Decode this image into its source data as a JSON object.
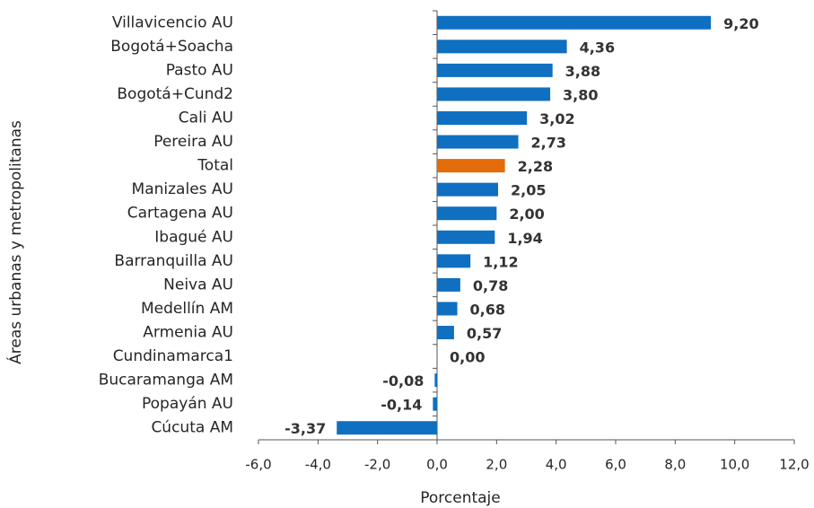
{
  "chart_data": {
    "type": "bar",
    "orientation": "horizontal",
    "categories": [
      "Villavicencio AU",
      "Bogotá+Soacha",
      "Pasto AU",
      "Bogotá+Cund2",
      "Cali AU",
      "Pereira AU",
      "Total",
      "Manizales AU",
      "Cartagena AU",
      "Ibagué AU",
      "Barranquilla AU",
      "Neiva AU",
      "Medellín AM",
      "Armenia AU",
      "Cundinamarca1",
      "Bucaramanga AM",
      "Popayán AU",
      "Cúcuta AM"
    ],
    "values": [
      9.2,
      4.36,
      3.88,
      3.8,
      3.02,
      2.73,
      2.28,
      2.05,
      2.0,
      1.94,
      1.12,
      0.78,
      0.68,
      0.57,
      0.0,
      -0.08,
      -0.14,
      -3.37
    ],
    "value_labels": [
      "9,20",
      "4,36",
      "3,88",
      "3,80",
      "3,02",
      "2,73",
      "2,28",
      "2,05",
      "2,00",
      "1,94",
      "1,12",
      "0,78",
      "0,68",
      "0,57",
      "0,00",
      "-0,08",
      "-0,14",
      "-3,37"
    ],
    "colors": [
      "#0f6fc0",
      "#0f6fc0",
      "#0f6fc0",
      "#0f6fc0",
      "#0f6fc0",
      "#0f6fc0",
      "#e46c0a",
      "#0f6fc0",
      "#0f6fc0",
      "#0f6fc0",
      "#0f6fc0",
      "#0f6fc0",
      "#0f6fc0",
      "#0f6fc0",
      "#0f6fc0",
      "#0f6fc0",
      "#0f6fc0",
      "#0f6fc0"
    ],
    "xlim": [
      -6,
      12
    ],
    "xticks": [
      {
        "value": -6,
        "label": "-6,0"
      },
      {
        "value": -4,
        "label": "-4,0"
      },
      {
        "value": -2,
        "label": "-2,0"
      },
      {
        "value": 0,
        "label": "0,0"
      },
      {
        "value": 2,
        "label": "2,0"
      },
      {
        "value": 4,
        "label": "4,0"
      },
      {
        "value": 6,
        "label": "6,0"
      },
      {
        "value": 8,
        "label": "8,0"
      },
      {
        "value": 10,
        "label": "10,0"
      },
      {
        "value": 12,
        "label": "12,0"
      }
    ],
    "x_label": "Porcentaje",
    "y_label": "Áreas urbanas y metropolitanas",
    "grid": false
  }
}
